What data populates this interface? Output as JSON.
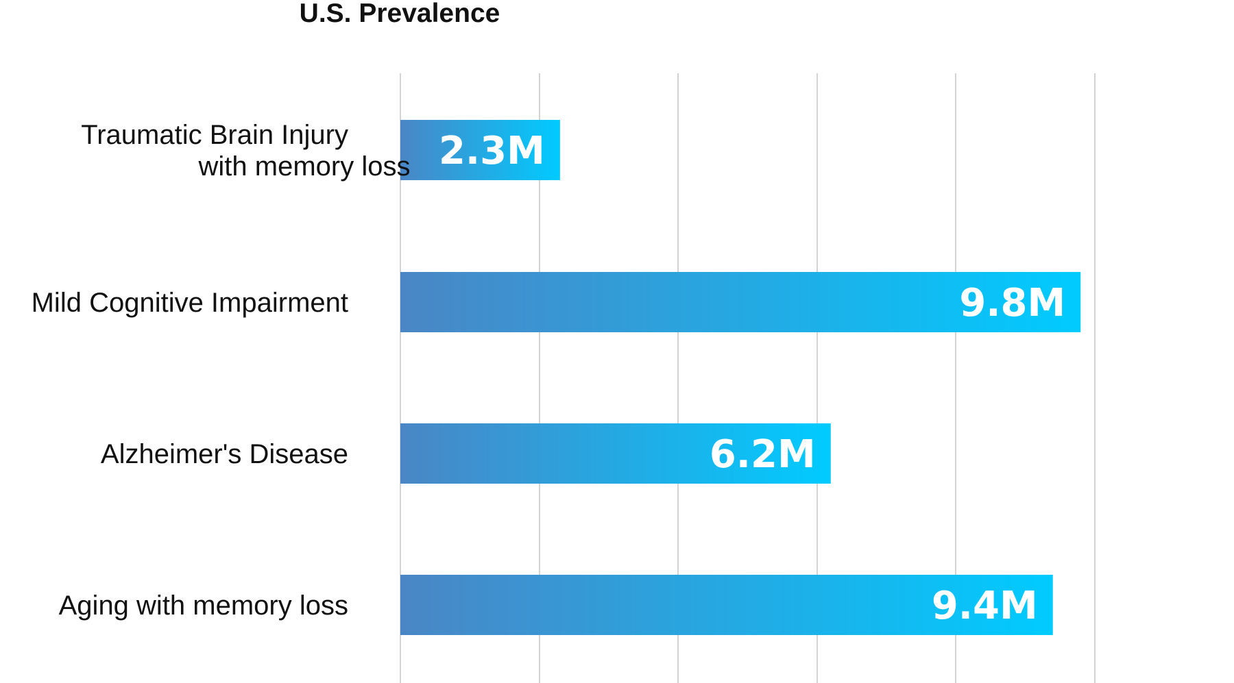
{
  "chart_data": {
    "type": "bar",
    "orientation": "horizontal",
    "title": "U.S. Prevalence",
    "categories": [
      [
        "Traumatic Brain Injury",
        "with memory loss"
      ],
      [
        "Mild Cognitive Impairment"
      ],
      [
        "Alzheimer's Disease"
      ],
      [
        "Aging with memory loss"
      ]
    ],
    "values": [
      2.3,
      9.8,
      6.2,
      9.4
    ],
    "value_labels": [
      "2.3M",
      "9.8M",
      "6.2M",
      "9.4M"
    ],
    "unit": "M",
    "xlim": [
      0,
      12
    ],
    "grid": true,
    "legend": "none",
    "colors": {
      "bar_start": "#4a86c5",
      "bar_end": "#00cbff",
      "grid": "#d3d3d3",
      "label_text": "#ffffff",
      "text": "#111111"
    }
  }
}
